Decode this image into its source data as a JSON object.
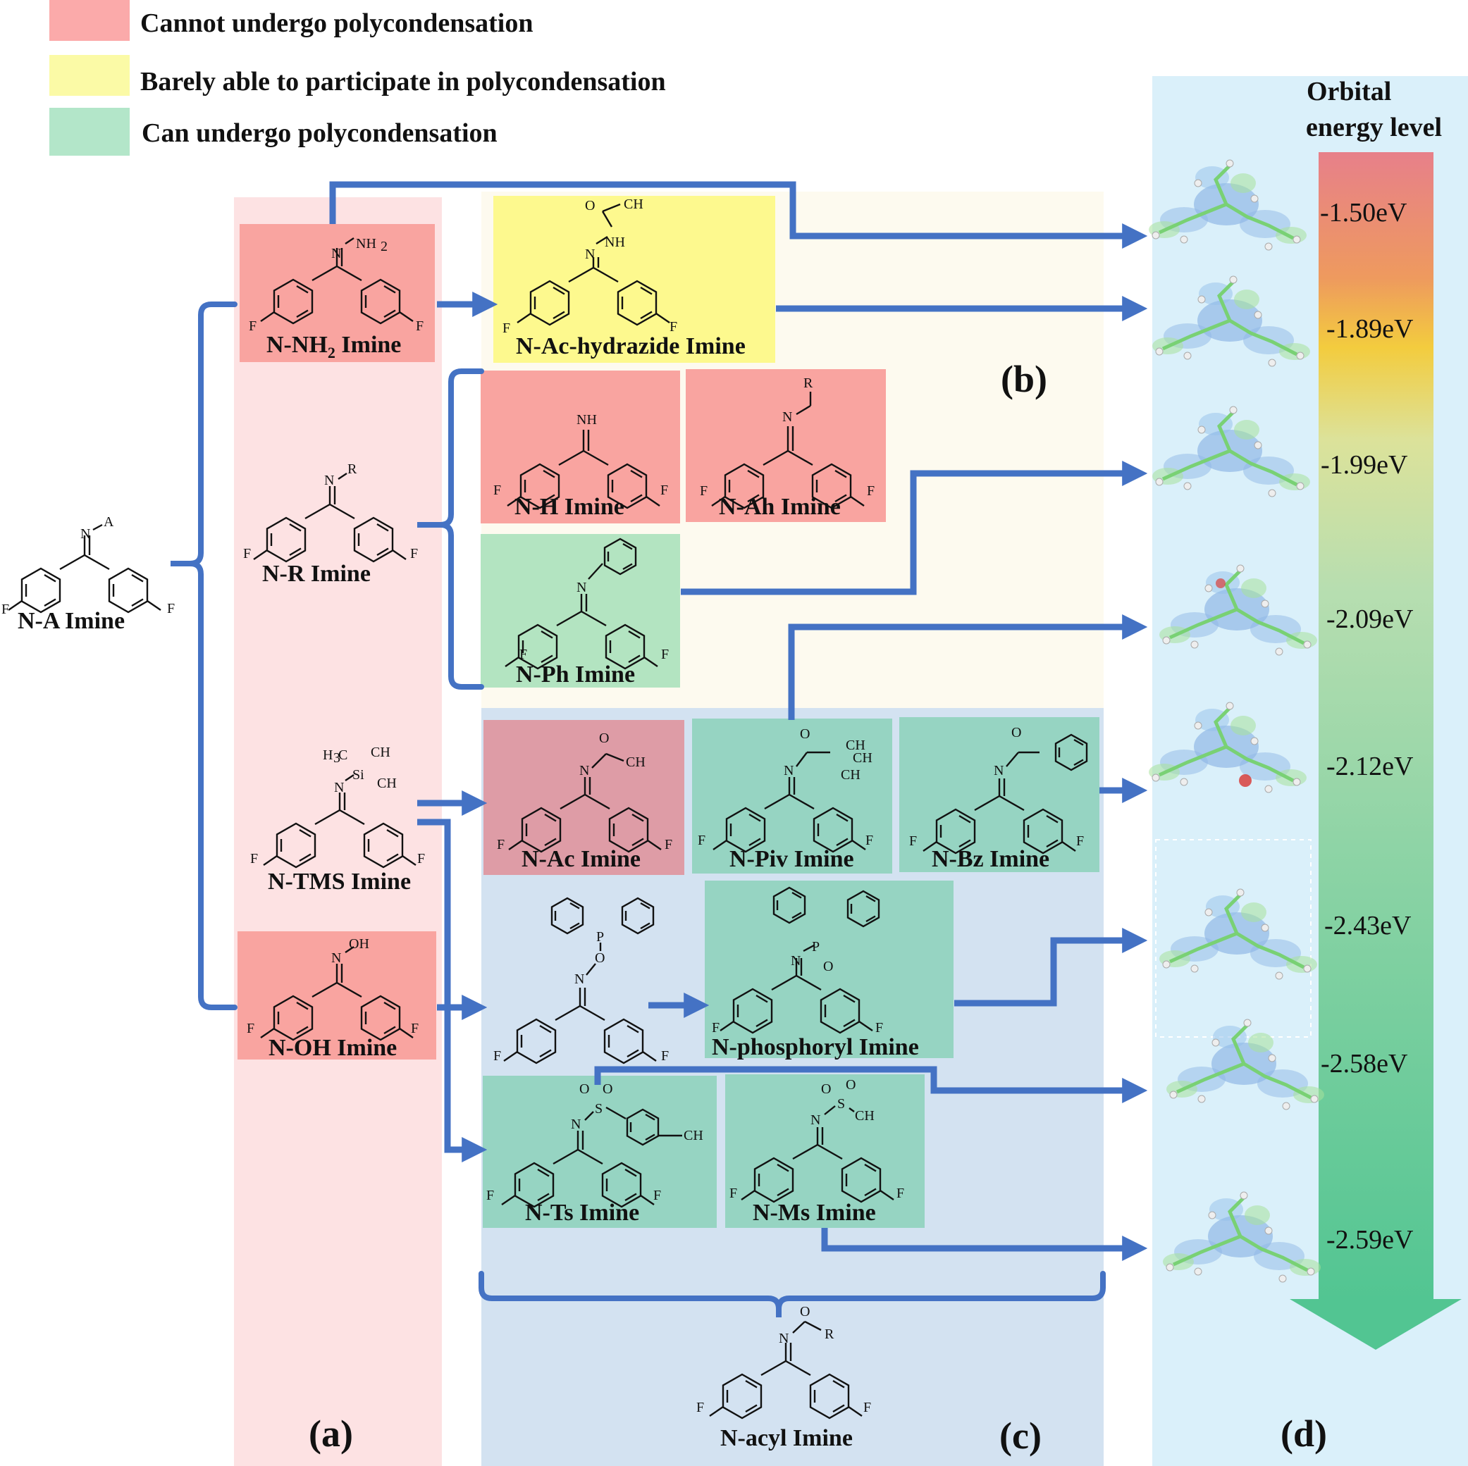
{
  "legend": {
    "items": [
      {
        "label": "Cannot undergo polycondensation",
        "color": "#FBAAAA"
      },
      {
        "label": "Barely able to participate in polycondensation",
        "color": "#FBFAA6"
      },
      {
        "label": "Can undergo polycondensation",
        "color": "#B3E6C9"
      }
    ]
  },
  "colors": {
    "arrow": "#4472C4",
    "red_box": "#F9A4A0",
    "yellow_box": "#FDF98E",
    "green_light": "#B3E4C1",
    "green_teal": "#96D4C2",
    "ac_box": "#DE9CA6",
    "col_a": "#FDE2E3",
    "col_b": "#FDFAEF",
    "col_c": "#D3E2F1",
    "col_d": "#DAF0FA"
  },
  "panels": {
    "a": "(a)",
    "b": "(b)",
    "c": "(c)",
    "d": "(d)"
  },
  "compounds": {
    "na": "N-A Imine",
    "nh2_pre": "N-NH",
    "nh2_sub": "2",
    "nh2_post": " Imine",
    "nr": "N-R Imine",
    "ntms": "N-TMS Imine",
    "noh": "N-OH Imine",
    "ac_hydrazide": "N-Ac-hydrazide Imine",
    "nh": "N-H Imine",
    "nah": "N-Ah Imine",
    "nph": "N-Ph Imine",
    "nac": "N-Ac Imine",
    "npiv": "N-Piv Imine",
    "nbz": "N-Bz Imine",
    "nphos": "N-phosphoryl Imine",
    "nts": "N-Ts Imine",
    "nms": "N-Ms Imine",
    "nacyl": "N-acyl Imine"
  },
  "energy": {
    "title_line1": "Orbital",
    "title_line2": "energy level",
    "levels": [
      "-1.50eV",
      "-1.89eV",
      "-1.99eV",
      "-2.09eV",
      "-2.12eV",
      "-2.43eV",
      "-2.58eV",
      "-2.59eV"
    ]
  },
  "chem": {
    "F": "F",
    "N": "N",
    "O": "O",
    "NH": "NH",
    "NH2": "NH",
    "sub2": "2",
    "R": "R",
    "A": "A",
    "OH": "OH",
    "CH3": "CH",
    "sub3": "3",
    "Si": "Si",
    "P": "P",
    "S": "S",
    "H3C": "H",
    "H3Csub": "3",
    "H3Cc": "C"
  }
}
